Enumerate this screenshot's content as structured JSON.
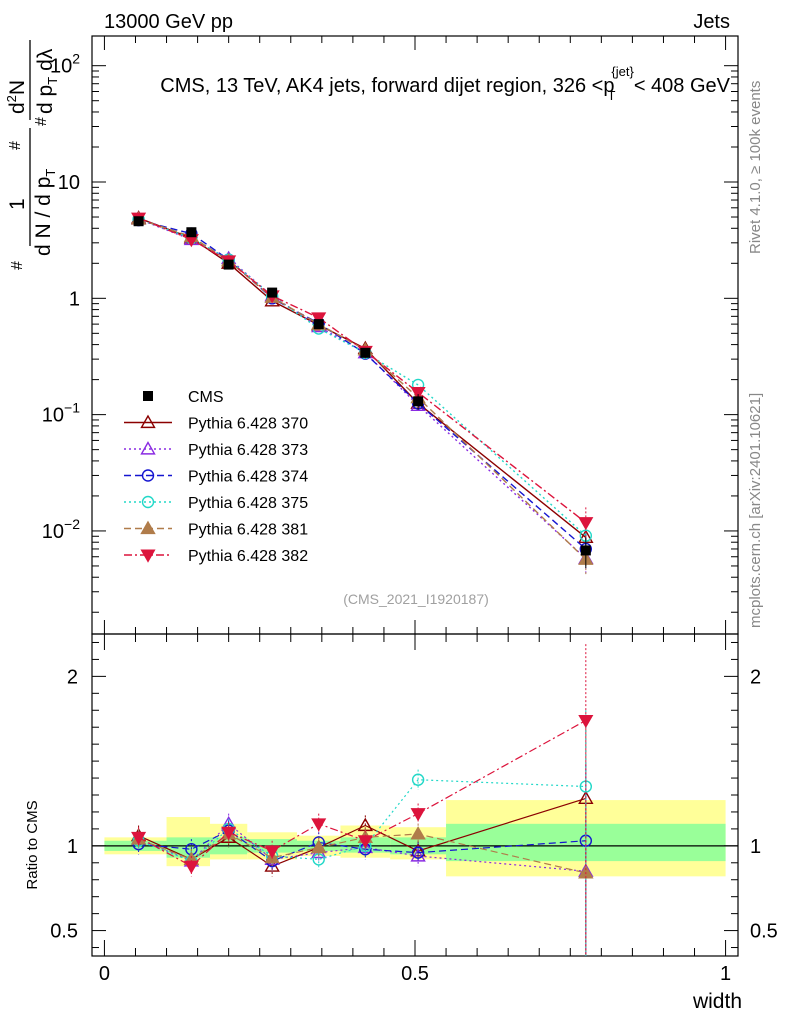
{
  "header": {
    "energy_label": "13000 GeV pp",
    "category_label": "Jets"
  },
  "side_labels": {
    "rivet": "Rivet 4.1.0, ≥ 100k events",
    "source": "mcplots.cern.ch [arXiv:2401.10621]"
  },
  "colors": {
    "CMS": "#000000",
    "Pythia 6.428 370": "#8b0000",
    "Pythia 6.428 373": "#8a2be2",
    "Pythia 6.428 374": "#1515d0",
    "Pythia 6.428 375": "#22d8c8",
    "Pythia 6.428 381": "#b07c4a",
    "Pythia 6.428 382": "#dc143c",
    "band_inner": "#99ff99",
    "band_outer": "#ffff99"
  },
  "chart_data": [
    {
      "type": "line",
      "panel": "main",
      "title": "CMS, 13 TeV, AK4 jets, forward dijet region, 326 <",
      "title_pt_symbol": "p",
      "title_pt_sub": "T",
      "title_pt_sup": "{jet}",
      "title_suffix": "< 408 GeV",
      "analysis_id": "(CMS_2021_I1920187)",
      "ylabel": {
        "hash1": "#",
        "one": "1",
        "dN": "d N / d p",
        "dN_sub": "T",
        "hash2": "#",
        "d2N": "d",
        "d2N_sup": "2",
        "d2N_rest": "N",
        "hash3": "#",
        "den": "d p",
        "den_sub": "T",
        "den_rest": "dλ"
      },
      "yscale": "log",
      "ylim": [
        0.0013,
        180
      ],
      "xlim": [
        -0.02,
        1.02
      ],
      "ytick_labels": [
        {
          "value": 100,
          "base": "10",
          "exp": "2"
        },
        {
          "value": 10,
          "base": "10",
          "exp": ""
        },
        {
          "value": 1,
          "base": "1",
          "exp": ""
        },
        {
          "value": 0.1,
          "base": "10",
          "exp": "−1"
        },
        {
          "value": 0.01,
          "base": "10",
          "exp": "−2"
        }
      ],
      "x": [
        0.055,
        0.14,
        0.2,
        0.27,
        0.345,
        0.42,
        0.505,
        0.775
      ],
      "data_series": {
        "name": "CMS",
        "values": [
          4.6,
          3.7,
          1.95,
          1.12,
          0.6,
          0.34,
          0.13,
          0.0068
        ],
        "errors": [
          0.2,
          0.15,
          0.1,
          0.06,
          0.04,
          0.03,
          0.02,
          0.002
        ]
      },
      "series": [
        {
          "name": "Pythia 6.428 370",
          "marker": "triangle-up-open",
          "dash": "solid",
          "values": [
            4.9,
            3.3,
            2.0,
            0.95,
            0.59,
            0.37,
            0.125,
            0.0088
          ]
        },
        {
          "name": "Pythia 6.428 373",
          "marker": "triangle-up-open",
          "dash": "dotted",
          "values": [
            4.8,
            3.2,
            2.2,
            1.05,
            0.57,
            0.34,
            0.12,
            0.0058
          ]
        },
        {
          "name": "Pythia 6.428 374",
          "marker": "circle-open",
          "dash": "dashed",
          "values": [
            4.7,
            3.6,
            2.15,
            1.0,
            0.61,
            0.335,
            0.125,
            0.007
          ]
        },
        {
          "name": "Pythia 6.428 375",
          "marker": "circle-open",
          "dash": "dotted",
          "values": [
            4.8,
            3.3,
            2.15,
            1.05,
            0.55,
            0.34,
            0.18,
            0.0091
          ]
        },
        {
          "name": "Pythia 6.428 381",
          "marker": "triangle-up-filled",
          "dash": "dashed",
          "values": [
            4.8,
            3.4,
            2.1,
            1.02,
            0.6,
            0.36,
            0.14,
            0.0057
          ]
        },
        {
          "name": "Pythia 6.428 382",
          "marker": "triangle-down-filled",
          "dash": "dashdot",
          "values": [
            4.9,
            3.2,
            2.1,
            1.05,
            0.68,
            0.35,
            0.155,
            0.0118
          ]
        }
      ]
    },
    {
      "type": "line",
      "panel": "ratio",
      "ylabel": "Ratio to CMS",
      "xlabel": "width",
      "xlim": [
        -0.02,
        1.02
      ],
      "ylim": [
        0.35,
        2.25
      ],
      "xticks": [
        0,
        0.5,
        1
      ],
      "xtick_labels": [
        "0",
        "0.5",
        "1"
      ],
      "yticks": [
        0.5,
        1,
        2
      ],
      "ytick_labels": [
        "0.5",
        "1",
        "2"
      ],
      "bins": [
        {
          "lo": 0.0,
          "hi": 0.1,
          "inner": [
            0.97,
            1.03
          ],
          "outer": [
            0.95,
            1.05
          ]
        },
        {
          "lo": 0.1,
          "hi": 0.17,
          "inner": [
            0.93,
            1.05
          ],
          "outer": [
            0.88,
            1.17
          ]
        },
        {
          "lo": 0.17,
          "hi": 0.23,
          "inner": [
            0.95,
            1.05
          ],
          "outer": [
            0.92,
            1.13
          ]
        },
        {
          "lo": 0.23,
          "hi": 0.31,
          "inner": [
            0.96,
            1.04
          ],
          "outer": [
            0.92,
            1.08
          ]
        },
        {
          "lo": 0.31,
          "hi": 0.38,
          "inner": [
            0.97,
            1.03
          ],
          "outer": [
            0.94,
            1.06
          ]
        },
        {
          "lo": 0.38,
          "hi": 0.46,
          "inner": [
            0.96,
            1.05
          ],
          "outer": [
            0.93,
            1.12
          ]
        },
        {
          "lo": 0.46,
          "hi": 0.55,
          "inner": [
            0.95,
            1.05
          ],
          "outer": [
            0.92,
            1.11
          ]
        },
        {
          "lo": 0.55,
          "hi": 1.0,
          "inner": [
            0.91,
            1.13
          ],
          "outer": [
            0.82,
            1.27
          ]
        }
      ],
      "x": [
        0.055,
        0.14,
        0.2,
        0.27,
        0.345,
        0.42,
        0.505,
        0.775
      ],
      "series": [
        {
          "name": "Pythia 6.428 370",
          "values": [
            1.06,
            0.92,
            1.05,
            0.88,
            0.99,
            1.12,
            0.97,
            1.28
          ]
        },
        {
          "name": "Pythia 6.428 373",
          "values": [
            1.04,
            0.91,
            1.13,
            0.92,
            0.96,
            0.99,
            0.94,
            0.85
          ]
        },
        {
          "name": "Pythia 6.428 374",
          "values": [
            1.01,
            0.98,
            1.09,
            0.91,
            1.02,
            0.98,
            0.96,
            1.03
          ]
        },
        {
          "name": "Pythia 6.428 375",
          "values": [
            1.03,
            0.91,
            1.1,
            0.94,
            0.92,
            1.0,
            1.39,
            1.35
          ]
        },
        {
          "name": "Pythia 6.428 381",
          "values": [
            1.04,
            0.92,
            1.07,
            0.93,
            0.99,
            1.05,
            1.07,
            0.84
          ]
        },
        {
          "name": "Pythia 6.428 382",
          "values": [
            1.05,
            0.88,
            1.08,
            0.97,
            1.13,
            1.03,
            1.19,
            1.74
          ]
        }
      ],
      "error_last_point": [
        0.35,
        2.2
      ]
    }
  ]
}
